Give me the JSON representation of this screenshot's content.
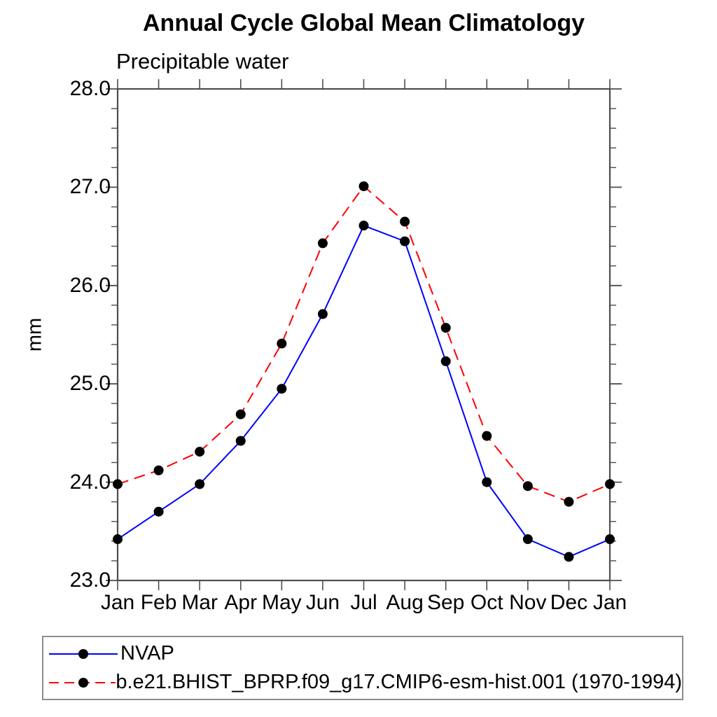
{
  "chart_data": {
    "type": "line",
    "title": "Annual Cycle Global Mean Climatology",
    "subtitle": "Precipitable water",
    "ylabel": "mm",
    "xlabel": "",
    "categories": [
      "Jan",
      "Feb",
      "Mar",
      "Apr",
      "May",
      "Jun",
      "Jul",
      "Aug",
      "Sep",
      "Oct",
      "Nov",
      "Dec",
      "Jan"
    ],
    "ylim": [
      23.0,
      28.0
    ],
    "ytick_major": [
      23.0,
      24.0,
      25.0,
      26.0,
      27.0,
      28.0
    ],
    "ytick_labels": [
      "23.0",
      "24.0",
      "25.0",
      "26.0",
      "27.0",
      "28.0"
    ],
    "ytick_minor_step": 0.2,
    "grid": false,
    "legend_position": "bottom-left-box",
    "series": [
      {
        "name": "NVAP",
        "color": "#0000ff",
        "line_style": "solid",
        "marker": "filled-circle",
        "marker_color": "#000000",
        "values": [
          23.42,
          23.7,
          23.98,
          24.42,
          24.95,
          25.71,
          26.61,
          26.45,
          25.23,
          24.0,
          23.42,
          23.24,
          23.42
        ]
      },
      {
        "name": "b.e21.BHIST_BPRP.f09_g17.CMIP6-esm-hist.001 (1970-1994)",
        "color": "#ff0000",
        "line_style": "dashed",
        "marker": "filled-circle",
        "marker_color": "#000000",
        "values": [
          23.98,
          24.12,
          24.31,
          24.69,
          25.41,
          26.43,
          27.01,
          26.65,
          25.57,
          24.47,
          23.96,
          23.8,
          23.98
        ]
      }
    ]
  },
  "colors": {
    "axis": "#4d4d4d",
    "text": "#000000",
    "background": "#ffffff",
    "legend_border": "#8c8c8c"
  }
}
